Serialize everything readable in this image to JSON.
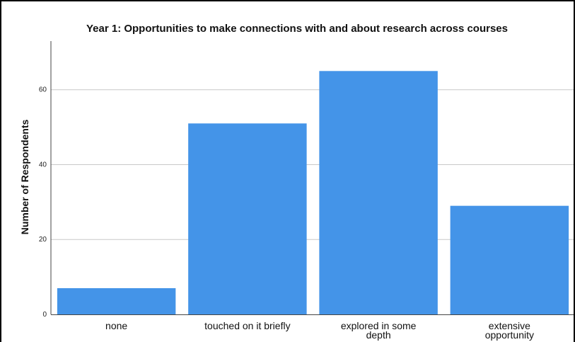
{
  "chart_data": {
    "type": "bar",
    "title": "Year 1: Opportunities to make connections with and about research across courses",
    "xlabel": "",
    "ylabel": "Number of Respondents",
    "categories": [
      "none",
      "touched on it briefly",
      "explored in some depth",
      "extensive opportunity"
    ],
    "category_label_lines": [
      [
        "none"
      ],
      [
        "touched on it briefly"
      ],
      [
        "explored in some",
        "depth"
      ],
      [
        "extensive",
        "opportunity"
      ]
    ],
    "values": [
      7,
      51,
      65,
      29
    ],
    "ylim": [
      0,
      73
    ],
    "yticks": [
      0,
      20,
      40,
      60
    ],
    "grid": true,
    "legend": "none",
    "colors": {
      "bar": "#4494e8",
      "grid": "#c8c8c8",
      "axis": "#444444"
    }
  }
}
